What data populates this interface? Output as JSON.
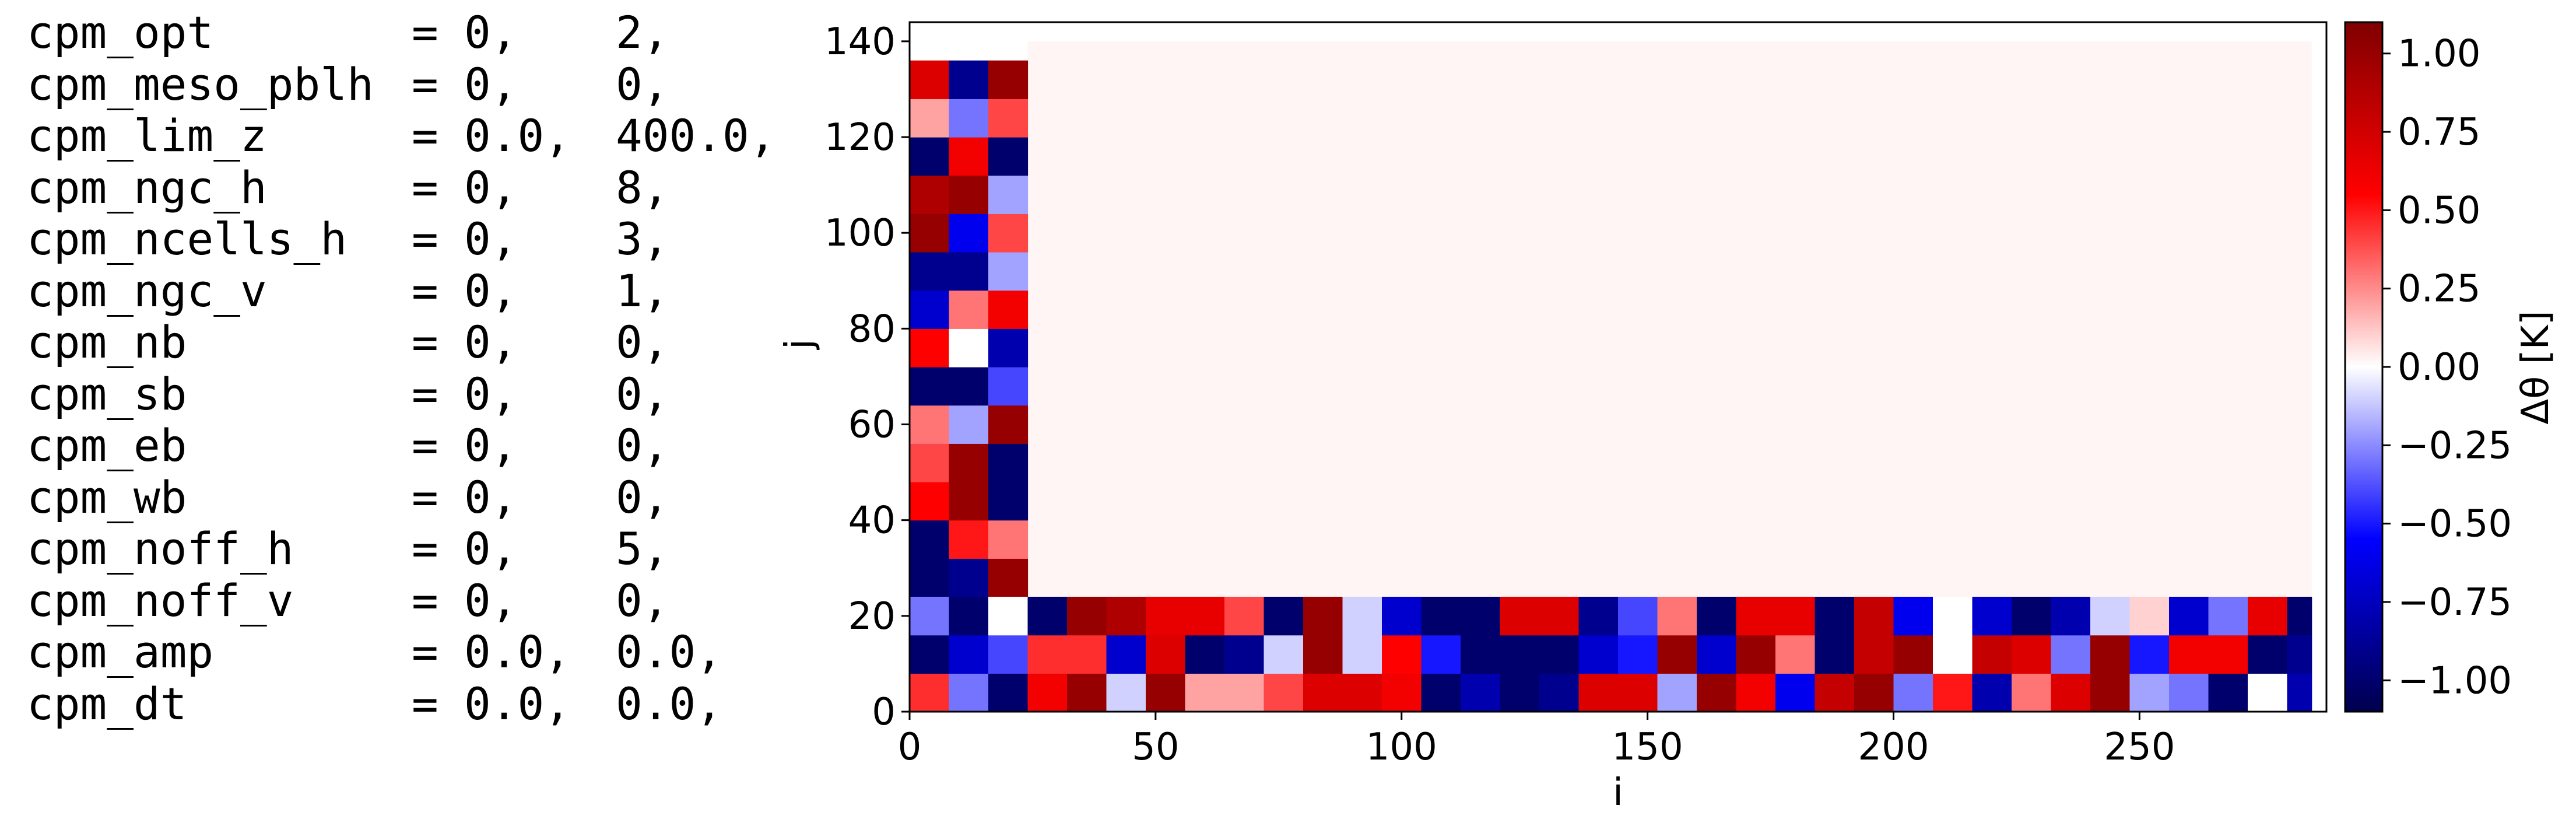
{
  "params": [
    {
      "name": "cpm_opt",
      "v1": "0,",
      "v2": "2,"
    },
    {
      "name": "cpm_meso_pblh",
      "v1": "0,",
      "v2": "0,"
    },
    {
      "name": "cpm_lim_z",
      "v1": "0.0,",
      "v2": "400.0,"
    },
    {
      "name": "cpm_ngc_h",
      "v1": "0,",
      "v2": "8,"
    },
    {
      "name": "cpm_ncells_h",
      "v1": "0,",
      "v2": "3,"
    },
    {
      "name": "cpm_ngc_v",
      "v1": "0,",
      "v2": "1,"
    },
    {
      "name": "cpm_nb",
      "v1": "0,",
      "v2": "0,"
    },
    {
      "name": "cpm_sb",
      "v1": "0,",
      "v2": "0,"
    },
    {
      "name": "cpm_eb",
      "v1": "0,",
      "v2": "0,"
    },
    {
      "name": "cpm_wb",
      "v1": "0,",
      "v2": "0,"
    },
    {
      "name": "cpm_noff_h",
      "v1": "0,",
      "v2": "5,"
    },
    {
      "name": "cpm_noff_v",
      "v1": "0,",
      "v2": "0,"
    },
    {
      "name": "cpm_amp",
      "v1": "0.0,",
      "v2": "0.0,"
    },
    {
      "name": "cpm_dt",
      "v1": "0.0,",
      "v2": "0.0,"
    }
  ],
  "equals": "=",
  "chart_data": {
    "type": "heatmap",
    "colormap": "seismic",
    "xlabel": "i",
    "ylabel": "j",
    "xlim": [
      0,
      288
    ],
    "ylim": [
      0,
      144
    ],
    "xticks": [
      0,
      50,
      100,
      150,
      200,
      250
    ],
    "yticks": [
      0,
      20,
      40,
      60,
      80,
      100,
      120,
      140
    ],
    "cell_size": 8,
    "colorbar": {
      "label": "Δθ [K]",
      "vmin": -1.1,
      "vmax": 1.1,
      "ticks": [
        1.0,
        0.75,
        0.5,
        0.25,
        0.0,
        -0.25,
        -0.5,
        -0.75,
        -1.0
      ],
      "tick_labels": [
        "1.00",
        "0.75",
        "0.50",
        "0.25",
        "0.00",
        "−0.25",
        "−0.50",
        "−0.75",
        "−1.00"
      ]
    },
    "background_value": 0.0,
    "left_strip": {
      "x": [
        0,
        8,
        16
      ],
      "y": [
        24,
        32,
        40,
        48,
        56,
        64,
        72,
        80,
        88,
        96,
        104,
        112,
        120,
        128
      ],
      "values": [
        [
          -1.0,
          -0.9,
          1.0
        ],
        [
          -1.0,
          0.5,
          0.3
        ],
        [
          0.55,
          1.0,
          -1.0
        ],
        [
          0.4,
          1.0,
          -1.0
        ],
        [
          0.3,
          -0.2,
          1.0
        ],
        [
          -1.0,
          -1.0,
          -0.4
        ],
        [
          0.55,
          0.0,
          -0.8
        ],
        [
          -0.7,
          0.3,
          0.6
        ],
        [
          -0.9,
          -0.9,
          -0.2
        ],
        [
          1.0,
          -0.6,
          0.4
        ],
        [
          0.9,
          1.0,
          -0.2
        ],
        [
          -1.0,
          0.6,
          -1.0
        ],
        [
          0.2,
          -0.3,
          0.4
        ],
        [
          0.7,
          -0.9,
          1.0
        ]
      ]
    },
    "bottom_strip": {
      "x": [
        24,
        32,
        40,
        48,
        56,
        64,
        72,
        80,
        88,
        96,
        104,
        112,
        120,
        128,
        136,
        144,
        152,
        160,
        168,
        176,
        184,
        192,
        200,
        208,
        216,
        224,
        232,
        240,
        248,
        256,
        264,
        272,
        280
      ],
      "rows_y": [
        0,
        8,
        16
      ],
      "left_cells": [
        [
          0.45,
          -0.3,
          -1.0
        ],
        [
          -1.0,
          -0.7,
          -0.4
        ],
        [
          -0.3,
          -1.0,
          0.0
        ]
      ],
      "values": [
        [
          0.6,
          1.0,
          -0.1,
          1.0,
          0.2,
          0.2,
          0.4,
          0.7,
          0.7,
          0.6,
          -1.0,
          -0.8,
          -1.0,
          -0.9,
          0.7,
          0.7,
          -0.2,
          1.0,
          0.6,
          -0.6,
          0.8,
          1.0,
          -0.3,
          0.5,
          -0.8,
          0.3,
          0.7,
          1.0,
          -0.2,
          -0.3,
          -1.0,
          0.0,
          -0.8
        ],
        [
          0.45,
          0.45,
          -0.7,
          0.7,
          -1.0,
          -0.9,
          -0.1,
          1.0,
          -0.1,
          0.55,
          -0.5,
          -1.0,
          -1.0,
          -1.0,
          -0.7,
          -0.5,
          1.0,
          -0.7,
          1.0,
          0.3,
          -1.0,
          0.8,
          1.0,
          0.0,
          0.8,
          0.7,
          -0.3,
          1.0,
          -0.5,
          0.6,
          0.6,
          -1.0,
          -0.9
        ],
        [
          -1.0,
          1.0,
          0.9,
          0.65,
          0.65,
          0.4,
          -1.0,
          1.0,
          -0.1,
          -0.7,
          -1.0,
          -1.0,
          0.7,
          0.7,
          -0.9,
          -0.4,
          0.3,
          -1.0,
          0.65,
          0.65,
          -1.0,
          0.8,
          -0.6,
          0.0,
          -0.7,
          -1.0,
          -0.8,
          -0.1,
          0.1,
          -0.7,
          -0.3,
          0.65,
          -1.0
        ]
      ]
    }
  }
}
